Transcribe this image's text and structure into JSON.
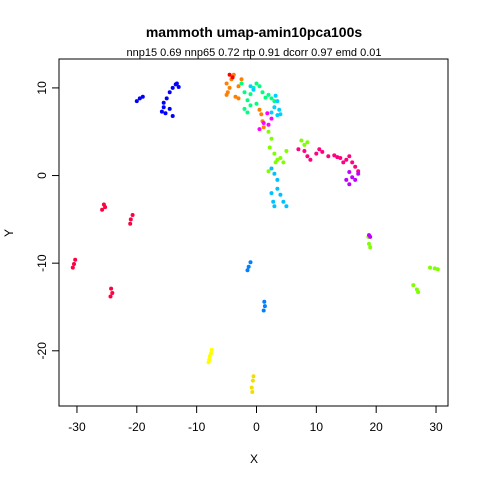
{
  "chart_data": {
    "type": "scatter",
    "title": "mammoth umap-amin10pca100s",
    "subtitle": "nnp15 0.69 nnp65 0.72 rtp 0.91 dcorr 0.97 emd 0.01",
    "xlabel": "X",
    "ylabel": "Y",
    "xlim": [
      -33,
      32
    ],
    "ylim": [
      -26.3,
      13.3
    ],
    "x_ticks": [
      -30,
      -20,
      -10,
      0,
      10,
      20,
      30
    ],
    "y_ticks": [
      10,
      0,
      -10,
      -20
    ],
    "grid": false,
    "legend": "none",
    "series": [
      {
        "color": "#0000ff",
        "points": [
          [
            -20,
            8.5
          ],
          [
            -19.5,
            8.8
          ],
          [
            -19,
            9
          ],
          [
            -15.5,
            8.3
          ],
          [
            -15,
            8.8
          ],
          [
            -14.5,
            9.5
          ],
          [
            -14,
            10
          ],
          [
            -13.5,
            10.4
          ],
          [
            -13.3,
            10.5
          ],
          [
            -13,
            10.1
          ],
          [
            -15.8,
            7.3
          ],
          [
            -15.5,
            7.8
          ],
          [
            -15.2,
            7.1
          ],
          [
            -14.5,
            7.6
          ],
          [
            -14,
            6.8
          ]
        ]
      },
      {
        "color": "#ff8000",
        "points": [
          [
            -5,
            10.5
          ],
          [
            -4.5,
            10
          ],
          [
            -4.2,
            11
          ],
          [
            -3.8,
            11.5
          ],
          [
            -4.8,
            9.5
          ],
          [
            -3.5,
            9
          ],
          [
            -3,
            8.8
          ],
          [
            -3,
            10.2
          ],
          [
            -2.5,
            11
          ],
          [
            -5,
            9.2
          ]
        ]
      },
      {
        "color": "#ff0000",
        "points": [
          [
            -4.5,
            11.5
          ],
          [
            -4,
            11.2
          ]
        ]
      },
      {
        "color": "#00ff80",
        "points": [
          [
            -2.5,
            10.5
          ],
          [
            -2,
            9.5
          ],
          [
            -1.5,
            8.6
          ],
          [
            -1,
            9.3
          ],
          [
            -0.5,
            10
          ],
          [
            0,
            10.5
          ],
          [
            0.5,
            10.2
          ],
          [
            1,
            9.5
          ],
          [
            1.5,
            8.9
          ],
          [
            2,
            9.2
          ],
          [
            2.5,
            8.8
          ],
          [
            3,
            8.5
          ],
          [
            -2,
            7.6
          ],
          [
            -1.5,
            7.2
          ],
          [
            -1,
            8
          ],
          [
            0,
            8.2
          ]
        ]
      },
      {
        "color": "#00d0ff",
        "points": [
          [
            -1,
            10.2
          ],
          [
            -0.5,
            9.8
          ],
          [
            3.2,
            9.1
          ],
          [
            3.5,
            8.5
          ],
          [
            3.8,
            7.5
          ],
          [
            4,
            7
          ],
          [
            2.5,
            7.2
          ],
          [
            3,
            7.8
          ],
          [
            3.5,
            6.9
          ]
        ]
      },
      {
        "color": "#ff8000",
        "points": [
          [
            0.5,
            7.5
          ],
          [
            0.8,
            7
          ],
          [
            1,
            6.2
          ],
          [
            1.2,
            5.5
          ]
        ]
      },
      {
        "color": "#ff00ff",
        "points": [
          [
            0.5,
            5.3
          ],
          [
            1.2,
            6
          ],
          [
            1.8,
            7.1
          ],
          [
            2,
            5.8
          ],
          [
            2.5,
            6.5
          ]
        ]
      },
      {
        "color": "#80ff00",
        "points": [
          [
            2,
            5
          ],
          [
            2.5,
            4.2
          ],
          [
            2.2,
            3.2
          ],
          [
            3,
            2.5
          ],
          [
            3.5,
            1.8
          ],
          [
            4,
            2
          ],
          [
            4.5,
            1.5
          ],
          [
            5,
            2.8
          ],
          [
            7.5,
            4
          ],
          [
            8,
            3.5
          ],
          [
            8.5,
            3.8
          ],
          [
            3.2,
            1.5
          ],
          [
            2,
            0.5
          ]
        ]
      },
      {
        "color": "#00c0ff",
        "points": [
          [
            2.5,
            0.8
          ],
          [
            3,
            0.2
          ],
          [
            3.5,
            -0.5
          ],
          [
            3.5,
            -1.5
          ],
          [
            2.5,
            -2
          ],
          [
            2.8,
            -3
          ],
          [
            3,
            -3.5
          ],
          [
            4,
            -2.2
          ],
          [
            4.5,
            -3
          ],
          [
            5,
            -3.5
          ]
        ]
      },
      {
        "color": "#ff0080",
        "points": [
          [
            7,
            3
          ],
          [
            8,
            2.8
          ],
          [
            8.5,
            2.2
          ],
          [
            9,
            1.8
          ],
          [
            10,
            2.5
          ],
          [
            10.5,
            3
          ],
          [
            11,
            2.7
          ],
          [
            12,
            2.2
          ],
          [
            13,
            2.3
          ],
          [
            13.5,
            2.1
          ],
          [
            14,
            2
          ],
          [
            14.5,
            1.5
          ],
          [
            15,
            1.8
          ],
          [
            15.5,
            2.2
          ],
          [
            16,
            1.5
          ],
          [
            16.5,
            1
          ],
          [
            17,
            0.5
          ]
        ]
      },
      {
        "color": "#c000ff",
        "points": [
          [
            15.5,
            0.4
          ],
          [
            15,
            -0.5
          ],
          [
            15.5,
            -1
          ],
          [
            16,
            -0.2
          ],
          [
            16.5,
            -0.5
          ],
          [
            17,
            0.2
          ]
        ]
      },
      {
        "color": "#80ff00",
        "points": [
          [
            18.8,
            -7.8
          ],
          [
            19,
            -8.2
          ],
          [
            18.7,
            -7
          ]
        ]
      },
      {
        "color": "#c000ff",
        "points": [
          [
            19,
            -7
          ],
          [
            18.8,
            -6.8
          ]
        ]
      },
      {
        "color": "#80ff00",
        "points": [
          [
            26.2,
            -12.5
          ],
          [
            26.8,
            -13
          ],
          [
            27,
            -13.3
          ],
          [
            29,
            -10.5
          ],
          [
            29.8,
            -10.6
          ],
          [
            30.3,
            -10.7
          ]
        ]
      },
      {
        "color": "#ff0040",
        "points": [
          [
            -25.5,
            -3.3
          ],
          [
            -25.3,
            -3.6
          ],
          [
            -25.8,
            -3.9
          ],
          [
            -21,
            -5
          ],
          [
            -20.7,
            -4.5
          ],
          [
            -21.1,
            -5.5
          ],
          [
            -30.3,
            -9.6
          ],
          [
            -30.5,
            -10.1
          ],
          [
            -30.7,
            -10.5
          ],
          [
            -24.3,
            -12.9
          ],
          [
            -24.1,
            -13.4
          ],
          [
            -24.4,
            -13.8
          ]
        ]
      },
      {
        "color": "#0080ff",
        "points": [
          [
            -1.5,
            -10.8
          ],
          [
            -1.3,
            -10.4
          ],
          [
            -1,
            -9.9
          ],
          [
            1.3,
            -14.4
          ],
          [
            1.4,
            -14.9
          ],
          [
            1.2,
            -15.4
          ]
        ]
      },
      {
        "color": "#ffff00",
        "points": [
          [
            -8,
            -21.3
          ],
          [
            -7.8,
            -20.6
          ],
          [
            -7.5,
            -19.9
          ],
          [
            -7.6,
            -20.3
          ],
          [
            -7.9,
            -21
          ]
        ]
      },
      {
        "color": "#f0e000",
        "points": [
          [
            -0.8,
            -24.2
          ],
          [
            -0.6,
            -23.4
          ],
          [
            -0.5,
            -22.9
          ],
          [
            -0.7,
            -24.7
          ]
        ]
      }
    ]
  }
}
